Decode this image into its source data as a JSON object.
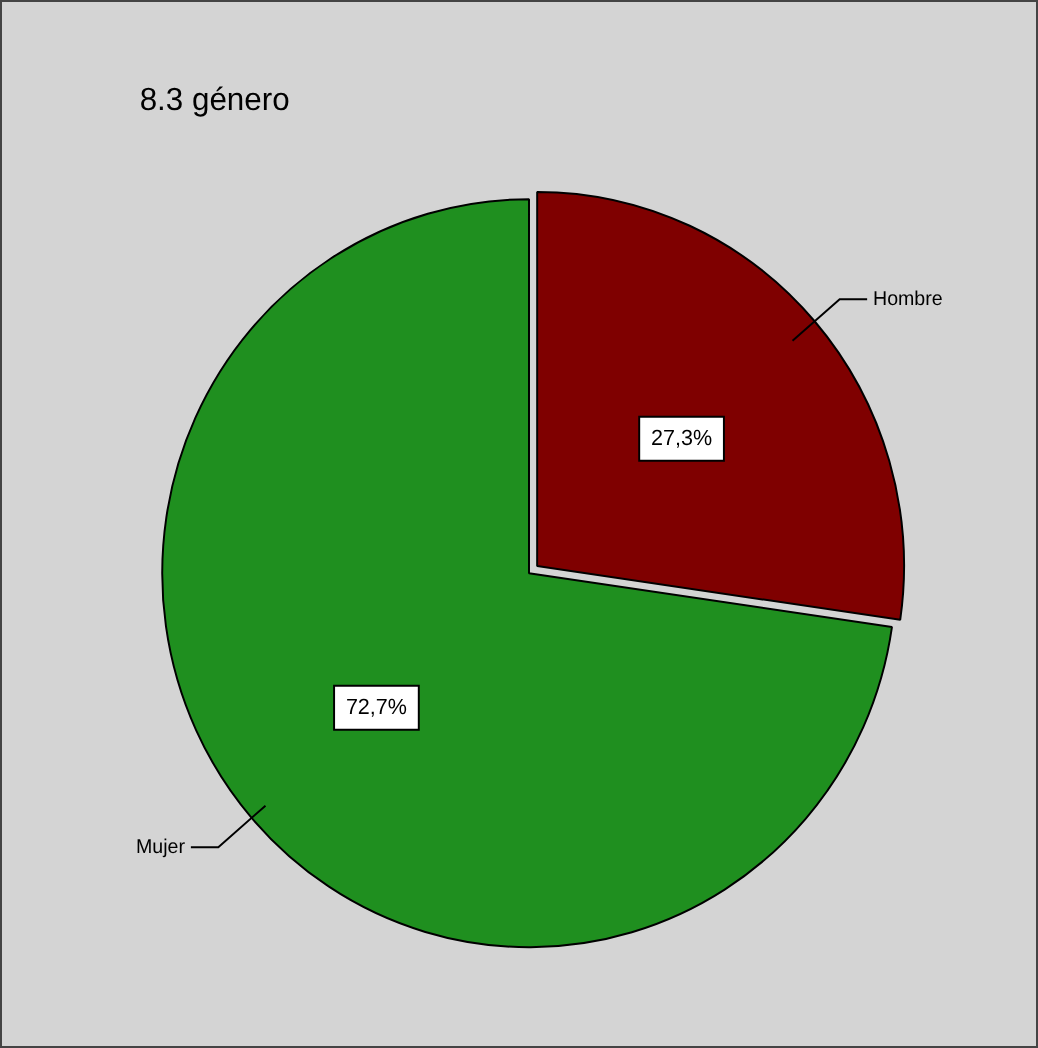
{
  "chart_data": {
    "type": "pie",
    "title": "8.3 género",
    "categories": [
      "Hombre",
      "Mujer"
    ],
    "values": [
      27.3,
      72.7
    ],
    "colors": [
      "#7f0000",
      "#1f8f1f"
    ],
    "value_labels": [
      "27,3%",
      "72,7%"
    ],
    "legend": false
  }
}
